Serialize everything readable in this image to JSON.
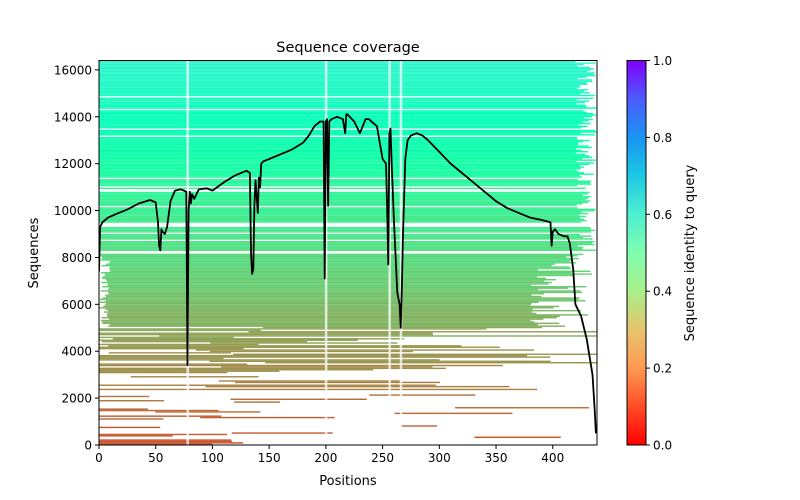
{
  "chart_data": {
    "type": "heatmap",
    "title": "Sequence coverage",
    "xlabel": "Positions",
    "ylabel": "Sequences",
    "xlim": [
      0,
      439
    ],
    "ylim": [
      0,
      16400
    ],
    "xticks": [
      0,
      50,
      100,
      150,
      200,
      250,
      300,
      350,
      400
    ],
    "xtick_labels": [
      "0",
      "50",
      "100",
      "150",
      "200",
      "250",
      "300",
      "350",
      "400"
    ],
    "yticks": [
      0,
      2000,
      4000,
      6000,
      8000,
      10000,
      12000,
      14000,
      16000
    ],
    "ytick_labels": [
      "0",
      "2000",
      "4000",
      "6000",
      "8000",
      "10000",
      "12000",
      "14000",
      "16000"
    ],
    "grid": false,
    "colorbar": {
      "label": "Sequence identity to query",
      "colormap": "rainbow_r",
      "range": [
        0,
        1
      ],
      "ticks": [
        0.0,
        0.2,
        0.4,
        0.6,
        0.8,
        1.0
      ],
      "tick_labels": [
        "0.0",
        "0.2",
        "0.4",
        "0.6",
        "0.8",
        "1.0"
      ]
    },
    "identity_bands": [
      {
        "seq_from": 0,
        "seq_to": 2200,
        "identity": 0.13
      },
      {
        "seq_from": 2200,
        "seq_to": 4200,
        "identity": 0.17
      },
      {
        "seq_from": 4200,
        "seq_to": 6200,
        "identity": 0.21
      },
      {
        "seq_from": 6200,
        "seq_to": 8000,
        "identity": 0.26
      },
      {
        "seq_from": 8000,
        "seq_to": 10000,
        "identity": 0.32
      },
      {
        "seq_from": 10000,
        "seq_to": 12000,
        "identity": 0.39
      },
      {
        "seq_from": 12000,
        "seq_to": 15000,
        "identity": 0.47
      },
      {
        "seq_from": 15000,
        "seq_to": 16400,
        "identity": 0.58
      }
    ],
    "coverage_line": {
      "name": "coverage",
      "color": "#000000",
      "x": [
        0,
        1,
        3,
        8,
        15,
        25,
        35,
        45,
        50,
        52,
        53,
        54,
        55,
        56,
        58,
        60,
        63,
        67,
        72,
        75,
        77,
        78,
        79,
        80,
        81,
        82,
        84,
        88,
        95,
        100,
        110,
        120,
        130,
        133,
        134,
        135,
        136,
        137,
        138,
        140,
        141,
        142,
        143,
        145,
        150,
        160,
        170,
        180,
        185,
        190,
        195,
        198,
        199,
        200,
        201,
        202,
        203,
        205,
        210,
        215,
        217,
        218,
        219,
        225,
        230,
        235,
        238,
        240,
        245,
        250,
        253,
        254,
        255,
        256,
        257,
        258,
        260,
        263,
        265,
        266,
        267,
        268,
        270,
        272,
        275,
        280,
        285,
        290,
        300,
        310,
        320,
        330,
        340,
        350,
        360,
        370,
        380,
        390,
        398,
        399,
        400,
        402,
        405,
        410,
        413,
        415,
        418,
        420,
        425,
        430,
        435,
        437,
        438
      ],
      "y": [
        7400,
        9300,
        9500,
        9700,
        9850,
        10050,
        10300,
        10450,
        10350,
        9500,
        8500,
        8300,
        9200,
        9100,
        9000,
        9300,
        10400,
        10850,
        10900,
        10850,
        10800,
        3400,
        10000,
        10800,
        10300,
        10700,
        10500,
        10900,
        10950,
        10850,
        11200,
        11500,
        11700,
        11600,
        8200,
        7300,
        7500,
        10200,
        11300,
        9900,
        11400,
        11000,
        12000,
        12100,
        12200,
        12400,
        12600,
        12900,
        13200,
        13600,
        13800,
        13800,
        7100,
        13800,
        13900,
        10200,
        13800,
        13900,
        14000,
        13900,
        13300,
        14100,
        14100,
        13800,
        13300,
        13900,
        13900,
        13800,
        13600,
        12200,
        12000,
        10200,
        7700,
        13300,
        13500,
        12000,
        9600,
        6500,
        6000,
        5000,
        6800,
        9000,
        12200,
        13000,
        13200,
        13300,
        13200,
        13000,
        12500,
        12000,
        11600,
        11200,
        10800,
        10400,
        10100,
        9900,
        9700,
        9600,
        9500,
        8500,
        9100,
        9200,
        9000,
        8900,
        8900,
        8600,
        7500,
        6000,
        5500,
        4500,
        3000,
        1500,
        500
      ]
    }
  }
}
